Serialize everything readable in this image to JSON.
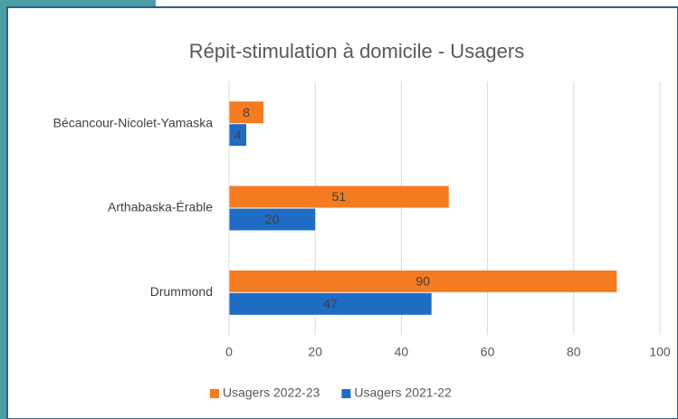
{
  "chart_data": {
    "type": "hbar",
    "title": "Répit-stimulation à domicile - Usagers",
    "categories": [
      "Bécancour-Nicolet-Yamaska",
      "Arthabaska-Érable",
      "Drummond"
    ],
    "series": [
      {
        "name": "Usagers 2022-23",
        "color": "#f47b20",
        "values": [
          8,
          51,
          90
        ]
      },
      {
        "name": "Usagers 2021-22",
        "color": "#1f6cc4",
        "values": [
          4,
          20,
          47
        ]
      }
    ],
    "xlim": [
      0,
      100
    ],
    "xticks": [
      0,
      20,
      40,
      60,
      80,
      100
    ],
    "grid": true,
    "legend": "bottom"
  }
}
